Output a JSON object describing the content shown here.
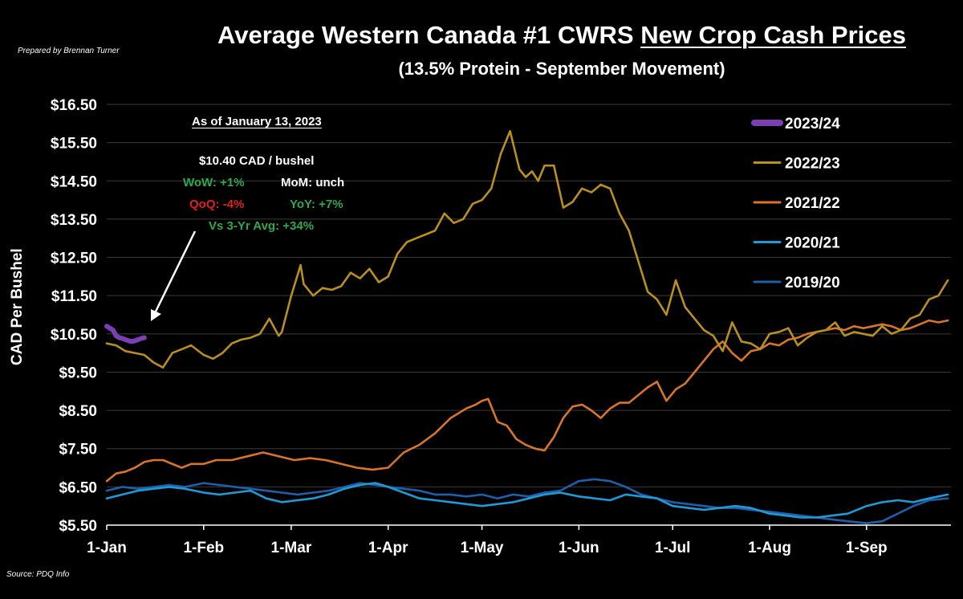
{
  "header": {
    "credit": "Prepared by Brennan Turner",
    "title_main": "Average Western Canada #1 CWRS ",
    "title_underlined": "New Crop Cash Prices",
    "subtitle": "(13.5% Protein - September Movement)",
    "source": "Source: PDQ Info"
  },
  "annotation": {
    "date_line": "As of January 13, 2023",
    "price_line": "$10.40 CAD / bushel",
    "wow": "WoW: +1%",
    "mom": "MoM: unch",
    "qoq": "QoQ: -4%",
    "yoy": "YoY: +7%",
    "vs3yr": "Vs 3-Yr Avg: +34%",
    "colors": {
      "positive": "#2fa84f",
      "negative": "#e02020",
      "neutral": "#ffffff"
    }
  },
  "chart_data": {
    "type": "line",
    "title": "Average Western Canada #1 CWRS New Crop Cash Prices",
    "subtitle": "(13.5% Protein - September Movement)",
    "ylabel": "CAD Per Bushel",
    "xlabel": "",
    "ylim": [
      5.5,
      16.5
    ],
    "y_ticks": [
      5.5,
      6.5,
      7.5,
      8.5,
      9.5,
      10.5,
      11.5,
      12.5,
      13.5,
      14.5,
      15.5,
      16.5
    ],
    "y_tick_labels": [
      "$5.50",
      "$6.50",
      "$7.50",
      "$8.50",
      "$9.50",
      "$10.50",
      "$11.50",
      "$12.50",
      "$13.50",
      "$14.50",
      "$15.50",
      "$16.50"
    ],
    "x_ticks": [
      "1-Jan",
      "1-Feb",
      "1-Mar",
      "1-Apr",
      "1-May",
      "1-Jun",
      "1-Jul",
      "1-Aug",
      "1-Sep"
    ],
    "x_tick_days": [
      0,
      31,
      59,
      90,
      120,
      151,
      181,
      212,
      243
    ],
    "x_range_days": [
      0,
      270
    ],
    "grid": true,
    "legend_position": "top-right",
    "series": [
      {
        "name": "2023/24",
        "color": "#7a3fb0",
        "days": [
          0,
          1,
          2,
          3,
          4,
          5,
          6,
          7,
          8,
          9,
          10,
          11,
          12
        ],
        "values": [
          10.7,
          10.65,
          10.6,
          10.45,
          10.4,
          10.38,
          10.35,
          10.32,
          10.3,
          10.32,
          10.35,
          10.38,
          10.4
        ]
      },
      {
        "name": "2022/23",
        "color": "#b89020",
        "days": [
          0,
          3,
          6,
          9,
          12,
          15,
          18,
          21,
          24,
          27,
          31,
          34,
          37,
          40,
          43,
          46,
          49,
          52,
          55,
          56,
          59,
          62,
          63,
          66,
          69,
          72,
          75,
          78,
          81,
          84,
          87,
          90,
          93,
          96,
          99,
          102,
          105,
          108,
          111,
          114,
          117,
          120,
          123,
          126,
          129,
          132,
          134,
          136,
          138,
          140,
          143,
          146,
          149,
          152,
          155,
          158,
          161,
          164,
          167,
          170,
          173,
          176,
          179,
          182,
          185,
          188,
          191,
          194,
          197,
          200,
          203,
          206,
          209,
          212,
          215,
          218,
          221,
          224,
          227,
          230,
          233,
          236,
          239,
          242,
          245,
          248,
          251,
          254,
          257,
          260,
          263,
          266,
          269
        ],
        "values": [
          10.25,
          10.2,
          10.05,
          10.0,
          9.95,
          9.75,
          9.62,
          10.0,
          10.1,
          10.2,
          9.95,
          9.85,
          10.0,
          10.25,
          10.35,
          10.4,
          10.5,
          10.9,
          10.45,
          10.55,
          11.5,
          12.3,
          11.8,
          11.5,
          11.7,
          11.65,
          11.75,
          12.1,
          11.95,
          12.2,
          11.85,
          12.0,
          12.6,
          12.9,
          13.0,
          13.1,
          13.2,
          13.65,
          13.4,
          13.5,
          13.9,
          14.0,
          14.3,
          15.2,
          15.8,
          14.8,
          14.6,
          14.75,
          14.5,
          14.9,
          14.9,
          13.8,
          13.95,
          14.3,
          14.2,
          14.4,
          14.3,
          13.65,
          13.2,
          12.4,
          11.6,
          11.4,
          11.0,
          11.9,
          11.2,
          10.9,
          10.6,
          10.45,
          10.05,
          10.8,
          10.3,
          10.25,
          10.1,
          10.5,
          10.55,
          10.65,
          10.2,
          10.4,
          10.55,
          10.6,
          10.8,
          10.45,
          10.55,
          10.5,
          10.45,
          10.7,
          10.5,
          10.6,
          10.9,
          11.0,
          11.4,
          11.5,
          11.9
        ]
      },
      {
        "name": "2021/22",
        "color": "#d8742c",
        "days": [
          0,
          3,
          6,
          9,
          12,
          15,
          18,
          21,
          24,
          27,
          31,
          35,
          40,
          45,
          50,
          55,
          60,
          65,
          70,
          75,
          80,
          85,
          90,
          95,
          100,
          105,
          110,
          115,
          118,
          120,
          122,
          125,
          128,
          131,
          134,
          137,
          140,
          143,
          146,
          149,
          152,
          155,
          158,
          161,
          164,
          167,
          170,
          173,
          176,
          179,
          182,
          185,
          188,
          191,
          194,
          197,
          200,
          203,
          206,
          209,
          212,
          215,
          218,
          221,
          224,
          227,
          230,
          233,
          236,
          239,
          242,
          245,
          248,
          251,
          254,
          257,
          260,
          263,
          266,
          269
        ],
        "values": [
          6.65,
          6.85,
          6.9,
          7.0,
          7.15,
          7.2,
          7.2,
          7.1,
          7.0,
          7.1,
          7.1,
          7.2,
          7.2,
          7.3,
          7.4,
          7.3,
          7.2,
          7.25,
          7.2,
          7.1,
          7.0,
          6.95,
          7.0,
          7.4,
          7.6,
          7.9,
          8.3,
          8.55,
          8.65,
          8.75,
          8.8,
          8.2,
          8.1,
          7.75,
          7.6,
          7.5,
          7.45,
          7.8,
          8.3,
          8.6,
          8.65,
          8.5,
          8.3,
          8.55,
          8.7,
          8.7,
          8.9,
          9.1,
          9.25,
          8.75,
          9.05,
          9.2,
          9.5,
          9.8,
          10.1,
          10.3,
          10.0,
          9.8,
          10.05,
          10.1,
          10.25,
          10.2,
          10.35,
          10.4,
          10.5,
          10.55,
          10.6,
          10.65,
          10.6,
          10.7,
          10.65,
          10.7,
          10.75,
          10.7,
          10.6,
          10.65,
          10.75,
          10.85,
          10.8,
          10.85
        ]
      },
      {
        "name": "2020/21",
        "color": "#1f9ad6",
        "days": [
          0,
          5,
          10,
          15,
          20,
          25,
          31,
          36,
          41,
          46,
          51,
          56,
          61,
          66,
          71,
          76,
          81,
          86,
          90,
          95,
          100,
          105,
          110,
          115,
          120,
          125,
          130,
          135,
          140,
          145,
          151,
          156,
          161,
          166,
          171,
          176,
          181,
          186,
          191,
          196,
          201,
          206,
          212,
          217,
          222,
          227,
          232,
          237,
          243,
          248,
          253,
          258,
          263,
          269
        ],
        "values": [
          6.2,
          6.3,
          6.4,
          6.45,
          6.5,
          6.45,
          6.35,
          6.3,
          6.35,
          6.4,
          6.2,
          6.1,
          6.15,
          6.2,
          6.3,
          6.45,
          6.55,
          6.6,
          6.5,
          6.35,
          6.2,
          6.15,
          6.1,
          6.05,
          6.0,
          6.05,
          6.1,
          6.2,
          6.3,
          6.35,
          6.25,
          6.2,
          6.15,
          6.3,
          6.25,
          6.2,
          6.0,
          5.95,
          5.9,
          5.95,
          6.0,
          5.95,
          5.8,
          5.75,
          5.7,
          5.7,
          5.75,
          5.8,
          6.0,
          6.1,
          6.15,
          6.1,
          6.2,
          6.3
        ]
      },
      {
        "name": "2019/20",
        "color": "#1f5fa8",
        "days": [
          0,
          5,
          10,
          15,
          20,
          25,
          31,
          36,
          41,
          46,
          51,
          56,
          61,
          66,
          71,
          76,
          81,
          86,
          90,
          95,
          100,
          105,
          110,
          115,
          120,
          125,
          130,
          135,
          140,
          145,
          151,
          156,
          161,
          166,
          171,
          176,
          181,
          186,
          191,
          196,
          201,
          206,
          212,
          217,
          222,
          227,
          232,
          237,
          243,
          248,
          253,
          258,
          263,
          269
        ],
        "values": [
          6.4,
          6.5,
          6.45,
          6.5,
          6.55,
          6.5,
          6.6,
          6.55,
          6.5,
          6.45,
          6.4,
          6.35,
          6.3,
          6.35,
          6.4,
          6.5,
          6.6,
          6.55,
          6.5,
          6.45,
          6.4,
          6.3,
          6.3,
          6.25,
          6.3,
          6.2,
          6.3,
          6.25,
          6.35,
          6.4,
          6.65,
          6.7,
          6.65,
          6.5,
          6.3,
          6.2,
          6.1,
          6.05,
          6.0,
          5.95,
          5.95,
          5.9,
          5.85,
          5.8,
          5.75,
          5.7,
          5.65,
          5.6,
          5.55,
          5.6,
          5.8,
          6.0,
          6.15,
          6.2
        ]
      }
    ]
  }
}
